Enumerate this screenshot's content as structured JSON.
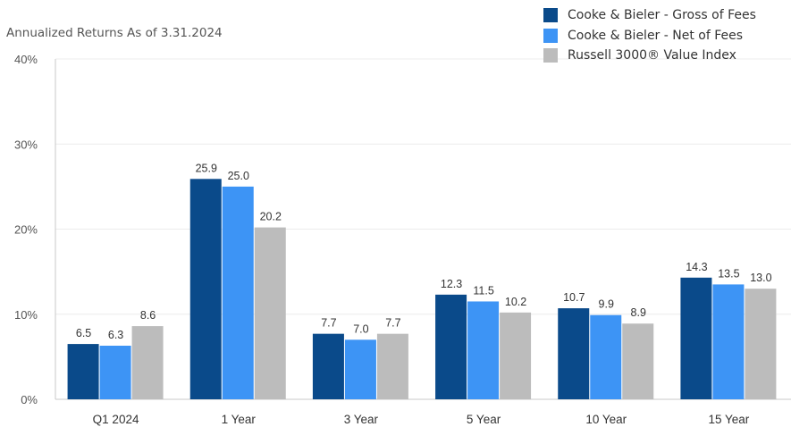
{
  "chart_data": {
    "type": "bar",
    "title": "",
    "subtitle": "Annualized Returns As of 3.31.2024",
    "categories": [
      "Q1 2024",
      "1 Year",
      "3 Year",
      "5 Year",
      "10 Year",
      "15 Year"
    ],
    "series": [
      {
        "name": "Cooke & Bieler - Gross of Fees",
        "color": "#0a4a8a",
        "values": [
          6.5,
          25.9,
          7.7,
          12.3,
          10.7,
          14.3
        ],
        "labels": [
          "6.5",
          "25.9",
          "7.7",
          "12.3",
          "10.7",
          "14.3"
        ]
      },
      {
        "name": "Cooke & Bieler - Net of Fees",
        "color": "#3d94f5",
        "values": [
          6.3,
          25.0,
          7.0,
          11.5,
          9.9,
          13.5
        ],
        "labels": [
          "6.3",
          "25.0",
          "7.0",
          "11.5",
          "9.9",
          "13.5"
        ]
      },
      {
        "name": "Russell 3000® Value Index",
        "color": "#bcbcbc",
        "values": [
          8.6,
          20.2,
          7.7,
          10.2,
          8.9,
          13.0
        ],
        "labels": [
          "8.6",
          "20.2",
          "7.7",
          "10.2",
          "8.9",
          "13.0"
        ]
      }
    ],
    "ylim": [
      0,
      40
    ],
    "yticks": [
      0,
      10,
      20,
      30,
      40
    ],
    "yticklabels": [
      "0%",
      "10%",
      "20%",
      "30%",
      "40%"
    ],
    "xlabel": "",
    "ylabel": "",
    "grid": true,
    "legend_position": "top-right"
  }
}
